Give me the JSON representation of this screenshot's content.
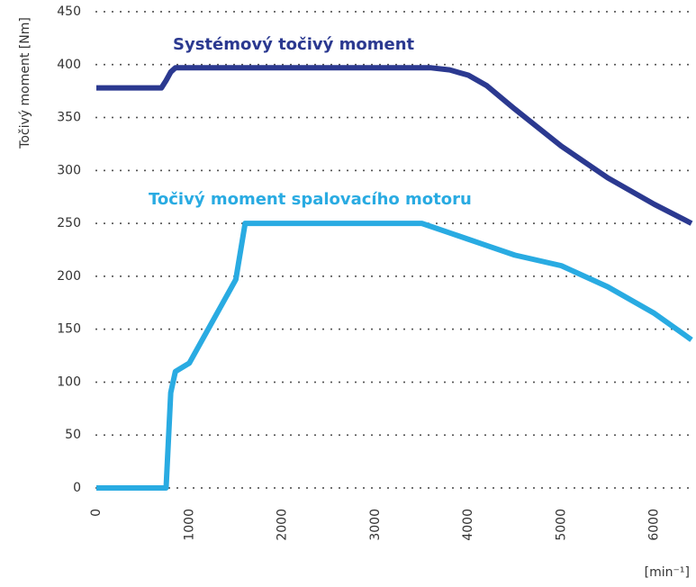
{
  "chart_data": {
    "type": "line",
    "ylabel": "Točivý moment [Nm]",
    "xlabel": "[min⁻¹]",
    "x": [
      0,
      700,
      750,
      800,
      850,
      1000,
      1500,
      1600,
      3500,
      3600,
      3800,
      4000,
      4200,
      4500,
      5000,
      5500,
      6000,
      6400
    ],
    "series": [
      {
        "name": "Systémový točivý moment",
        "color": "#2b3990",
        "values": [
          378,
          378,
          385,
          393,
          397,
          397,
          397,
          397,
          397,
          397,
          395,
          390,
          380,
          358,
          323,
          293,
          268,
          250
        ]
      },
      {
        "name": "Točivý moment spalovacího motoru",
        "color": "#29abe2",
        "values": [
          0,
          0,
          0,
          90,
          110,
          118,
          197,
          250,
          250,
          247,
          241,
          235,
          229,
          220,
          210,
          190,
          165,
          140
        ]
      }
    ],
    "xlim": [
      0,
      6400
    ],
    "ylim": [
      0,
      450
    ],
    "xticks": [
      0,
      1000,
      2000,
      3000,
      4000,
      5000,
      6000
    ],
    "yticks": [
      0,
      50,
      100,
      150,
      200,
      250,
      300,
      350,
      400,
      450
    ],
    "grid": true
  }
}
